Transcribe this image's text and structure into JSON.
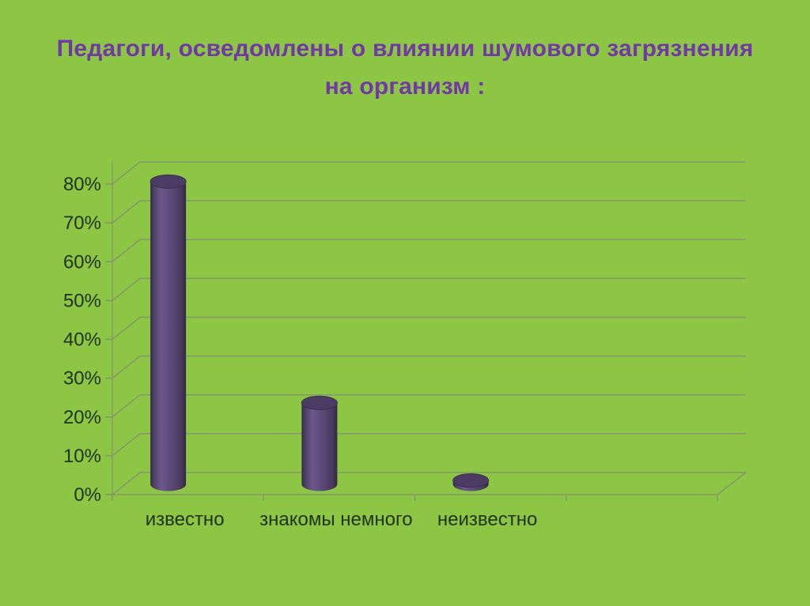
{
  "slide": {
    "title": "Педагоги, осведомлены о влиянии шумового загрязнения на организм :"
  },
  "chart_data": {
    "type": "bar",
    "subtype": "3d-cylinder",
    "title": "Педагоги, осведомлены о влиянии шумового загрязнения на организм :",
    "categories": [
      "известно",
      "знакомы немного",
      "неизвестно"
    ],
    "values": [
      78,
      21,
      1
    ],
    "unit": "%",
    "xlabel": "",
    "ylabel": "",
    "ylim": [
      0,
      80
    ],
    "ytick_step": 10,
    "ytick_labels": [
      "0%",
      "10%",
      "20%",
      "30%",
      "40%",
      "50%",
      "60%",
      "70%",
      "80%"
    ],
    "grid": true,
    "legend": false,
    "colors": {
      "background": "#8CC644",
      "title": "#7138A6",
      "gridline": "#85986B",
      "axis_text": "#22331C",
      "bar_body": "#5D4A7A",
      "bar_edge_dark": "#332940",
      "bar_light_band": "#6C588A",
      "bar_top": "#4C3C64"
    }
  }
}
